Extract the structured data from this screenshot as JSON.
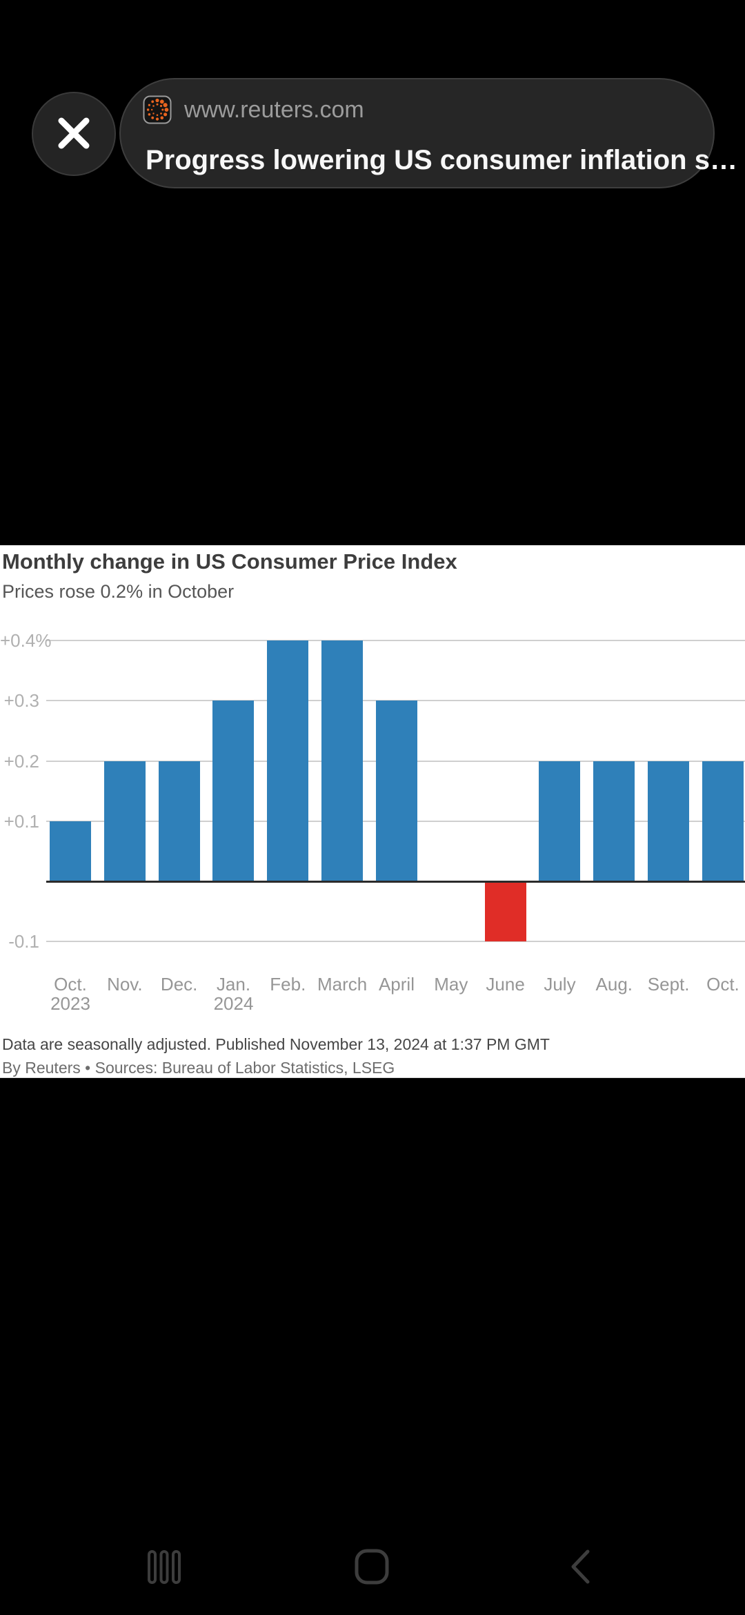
{
  "overlay": {
    "url": "www.reuters.com",
    "title": "Progress lowering US consumer inflation s…",
    "close_icon": "close-x",
    "favicon": "reuters-dotted-circle-logo",
    "favicon_accent_color": "#e8641f"
  },
  "chart_card": {
    "title": "Monthly change in US Consumer Price Index",
    "subtitle": "Prices rose 0.2% in October",
    "footer_line1": "Data are seasonally adjusted. Published November 13, 2024 at 1:37 PM GMT",
    "footer_line2": "By Reuters • Sources: Bureau of Labor Statistics, LSEG"
  },
  "chart_data": {
    "type": "bar",
    "title": "Monthly change in US Consumer Price Index",
    "subtitle": "Prices rose 0.2% in October",
    "categories": [
      "Oct.",
      "Nov.",
      "Dec.",
      "Jan.",
      "Feb.",
      "March",
      "April",
      "May",
      "June",
      "July",
      "Aug.",
      "Sept.",
      "Oct."
    ],
    "category_sublabels": [
      "2023",
      "",
      "",
      "2024",
      "",
      "",
      "",
      "",
      "",
      "",
      "",
      "",
      ""
    ],
    "values": [
      0.1,
      0.2,
      0.2,
      0.3,
      0.4,
      0.4,
      0.3,
      0.0,
      -0.1,
      0.2,
      0.2,
      0.2,
      0.2
    ],
    "unit": "%",
    "ylim": [
      -0.15,
      0.45
    ],
    "grid": true,
    "legend_position": "none",
    "y_ticks": [
      {
        "value": 0.4,
        "label": "+0.4%"
      },
      {
        "value": 0.3,
        "label": "+0.3"
      },
      {
        "value": 0.2,
        "label": "+0.2"
      },
      {
        "value": 0.1,
        "label": "+0.1"
      },
      {
        "value": -0.1,
        "label": "-0.1"
      }
    ],
    "colors": {
      "positive_bar": "#2f80b9",
      "negative_bar": "#e02d27",
      "grid_line": "#cfcfcf",
      "zero_line": "#2b2b2b",
      "y_tick_label": "#b0b0b0",
      "x_tick_label": "#969696"
    }
  },
  "nav": {
    "recents_icon": "recents-three-bars",
    "home_icon": "home-rounded-square",
    "back_icon": "back-chevron"
  }
}
